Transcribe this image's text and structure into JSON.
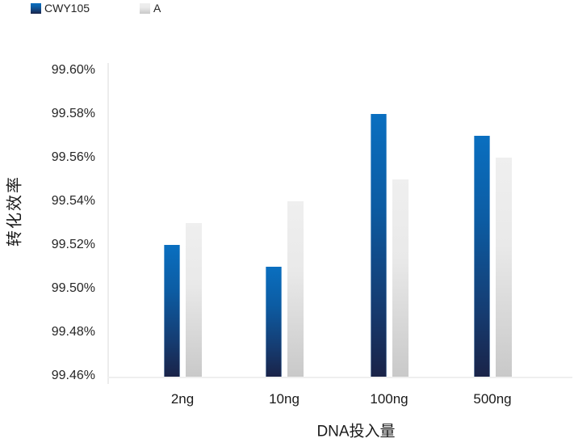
{
  "chart_data": {
    "type": "bar",
    "title": "",
    "categories": [
      "2ng",
      "10ng",
      "100ng",
      "500ng"
    ],
    "series": [
      {
        "name": "CWY105",
        "values": [
          99.52,
          99.51,
          99.58,
          99.57
        ],
        "gradient": [
          "#0a6fc0 0%",
          "#0c5ca3 35%",
          "#153d73 72%",
          "#1a2348 100%"
        ]
      },
      {
        "name": "A",
        "values": [
          99.53,
          99.54,
          99.55,
          99.56
        ],
        "gradient": [
          "#efefef 0%",
          "#e9e9e9 40%",
          "#c9c9c9 100%"
        ]
      }
    ],
    "xlabel": "DNA投入量",
    "ylabel": "转化效率",
    "ylim": [
      99.46,
      99.6
    ],
    "ytick_step": 0.02,
    "ytick_labels": [
      "99.46%",
      "99.48%",
      "99.50%",
      "99.52%",
      "99.54%",
      "99.56%",
      "99.58%",
      "99.60%"
    ],
    "grid": false,
    "legend_position": "top-left"
  },
  "colors": {
    "background": "#ffffff",
    "axis_line": "#ececec",
    "text": "#1a1a1a",
    "tick_text": "#262626",
    "series_blue_top": "#0a6fc0",
    "series_blue_bottom": "#1a2348",
    "series_gray_top": "#efefef",
    "series_gray_bottom": "#c9c9c9"
  }
}
